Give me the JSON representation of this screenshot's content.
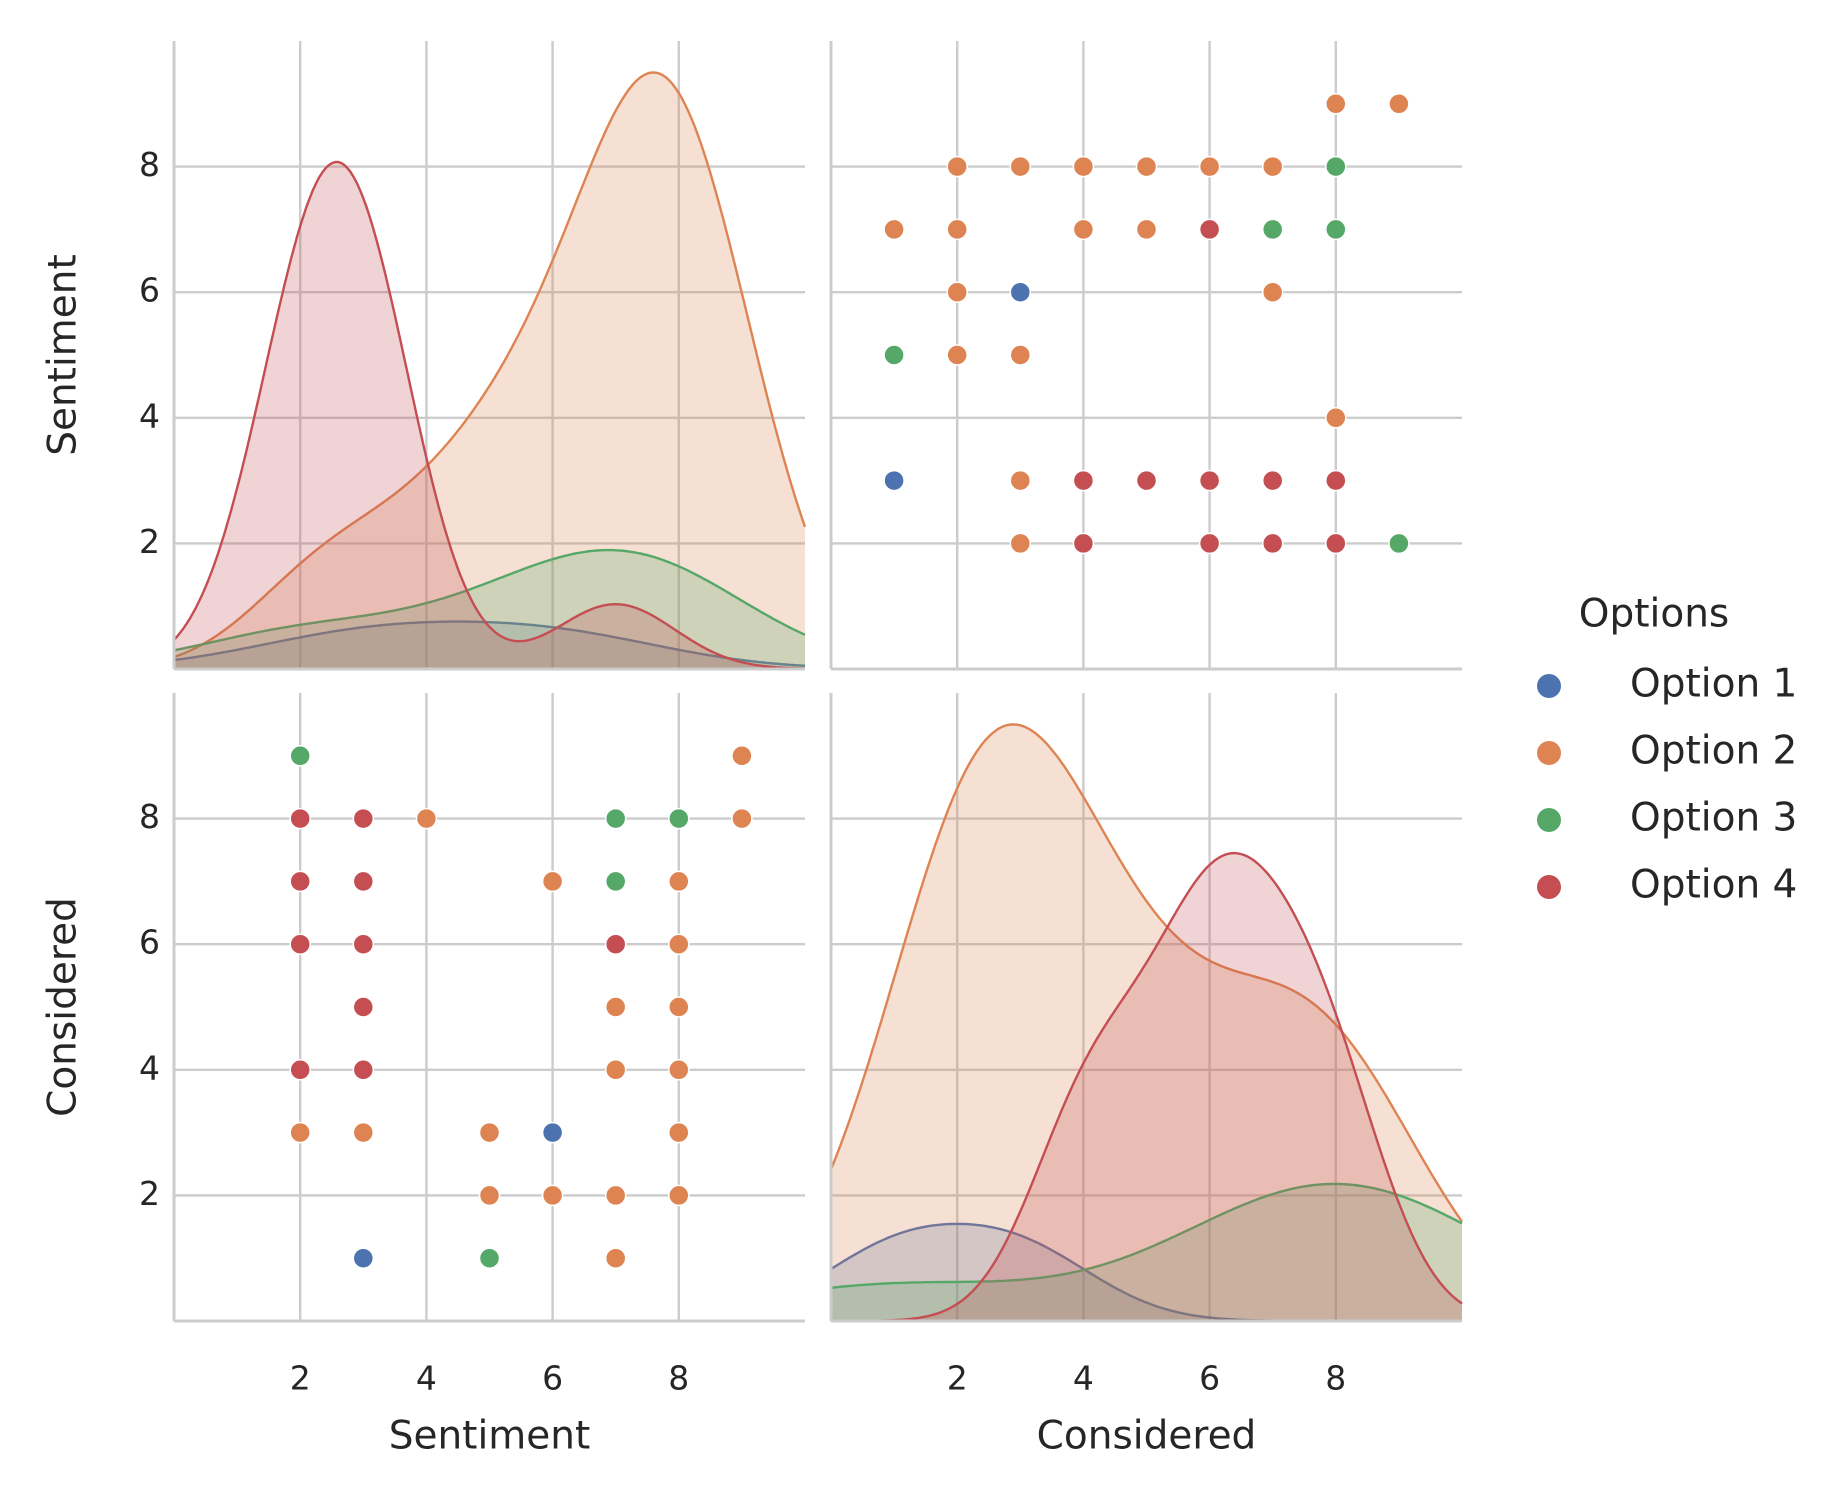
{
  "chart_data": {
    "type": "pairplot",
    "variables": [
      "Sentiment",
      "Considered"
    ],
    "legend_title": "Options",
    "legend_position": "right",
    "grid": true,
    "xlim": [
      0,
      10
    ],
    "ylim": [
      0,
      10
    ],
    "xticks": [
      2,
      4,
      6,
      8
    ],
    "yticks": [
      2,
      4,
      6,
      8
    ],
    "series": [
      {
        "name": "Option 1",
        "color": "#4c72b0",
        "sentiment": [
          6,
          3
        ],
        "considered": [
          3,
          1
        ]
      },
      {
        "name": "Option 2",
        "color": "#dd8452",
        "sentiment": [
          9,
          9,
          8,
          8,
          8,
          8,
          8,
          8,
          7,
          7,
          7,
          7,
          6,
          6,
          5,
          5,
          4,
          3,
          2
        ],
        "considered": [
          8,
          9,
          2,
          3,
          4,
          5,
          6,
          7,
          1,
          2,
          4,
          5,
          2,
          7,
          2,
          3,
          8,
          3,
          3
        ]
      },
      {
        "name": "Option 3",
        "color": "#55a868",
        "sentiment": [
          8,
          7,
          7,
          5,
          2
        ],
        "considered": [
          8,
          7,
          8,
          1,
          9
        ]
      },
      {
        "name": "Option 4",
        "color": "#c44e52",
        "sentiment": [
          7,
          3,
          3,
          3,
          3,
          3,
          2,
          2,
          2,
          2
        ],
        "considered": [
          6,
          4,
          5,
          6,
          7,
          8,
          4,
          6,
          7,
          8
        ]
      }
    ]
  }
}
